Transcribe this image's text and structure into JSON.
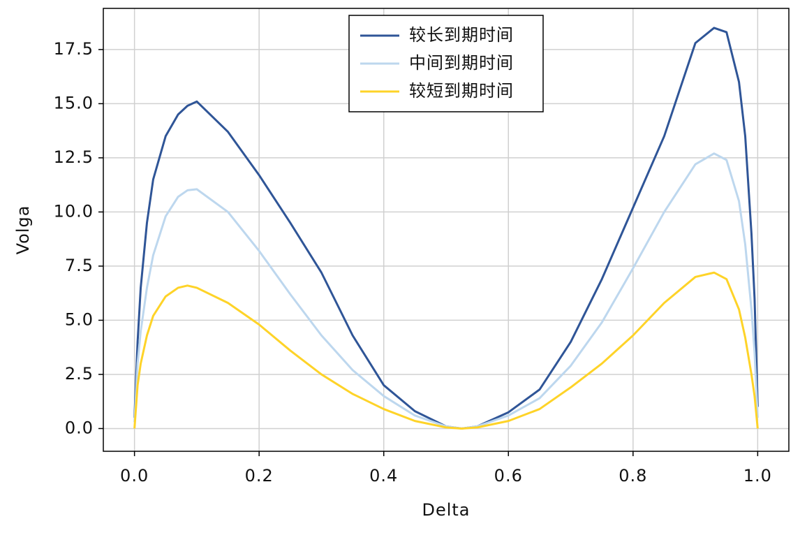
{
  "chart_data": {
    "type": "line",
    "x_label": "Delta",
    "y_label": "Volga",
    "x": [
      0,
      0.005,
      0.01,
      0.02,
      0.03,
      0.05,
      0.07,
      0.085,
      0.1,
      0.15,
      0.2,
      0.25,
      0.3,
      0.35,
      0.4,
      0.45,
      0.5,
      0.525,
      0.55,
      0.6,
      0.65,
      0.7,
      0.75,
      0.8,
      0.85,
      0.9,
      0.93,
      0.95,
      0.97,
      0.98,
      0.99,
      0.995,
      1.0
    ],
    "series": [
      {
        "name": "较长到期时间",
        "color": "#2f5597",
        "values": [
          0.5,
          4,
          6.5,
          9.5,
          11.5,
          13.5,
          14.5,
          14.9,
          15.1,
          13.7,
          11.7,
          9.5,
          7.2,
          4.3,
          2.0,
          0.8,
          0.1,
          0,
          0.1,
          0.75,
          1.8,
          4.0,
          6.9,
          10.2,
          13.5,
          17.8,
          18.5,
          18.3,
          16,
          13.5,
          9,
          6,
          1
        ]
      },
      {
        "name": "中间到期时间",
        "color": "#bdd7ee",
        "values": [
          0.3,
          3,
          4.5,
          6.5,
          8,
          9.8,
          10.7,
          11.0,
          11.05,
          10,
          8.2,
          6.2,
          4.3,
          2.7,
          1.5,
          0.6,
          0.1,
          0,
          0.1,
          0.6,
          1.4,
          2.9,
          4.9,
          7.4,
          10,
          12.2,
          12.7,
          12.4,
          10.5,
          8.5,
          5.5,
          3.5,
          0.5
        ]
      },
      {
        "name": "较短到期时间",
        "color": "#fed328",
        "values": [
          0,
          2,
          3,
          4.3,
          5.2,
          6.1,
          6.5,
          6.6,
          6.5,
          5.8,
          4.8,
          3.6,
          2.5,
          1.6,
          0.9,
          0.35,
          0.05,
          0,
          0.05,
          0.35,
          0.9,
          1.9,
          3.0,
          4.3,
          5.8,
          7.0,
          7.2,
          6.9,
          5.5,
          4.2,
          2.5,
          1.5,
          0
        ]
      }
    ],
    "xlim": [
      -0.05,
      1.05
    ],
    "ylim": [
      -1.05,
      19.4
    ],
    "xticks": [
      {
        "value": 0,
        "label": "0.0"
      },
      0.2,
      0.4,
      0.6,
      0.8,
      {
        "value": 1,
        "label": "1.0"
      }
    ],
    "yticks": [
      {
        "value": 0,
        "label": "0.0"
      },
      2.5,
      {
        "value": 5,
        "label": "5.0"
      },
      7.5,
      {
        "value": 10,
        "label": "10.0"
      },
      12.5,
      {
        "value": 15,
        "label": "15.0"
      },
      17.5
    ],
    "grid": true,
    "legend": "upper center"
  }
}
